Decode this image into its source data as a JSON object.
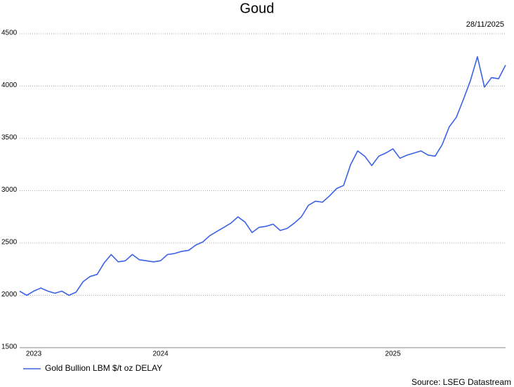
{
  "chart_data": {
    "type": "line",
    "title": "Goud",
    "date": "28/11/2025",
    "source": "Source: LSEG Datastream",
    "categories": [
      null,
      null,
      "2023",
      null,
      null,
      null,
      null,
      null,
      null,
      null,
      null,
      null,
      null,
      null,
      null,
      null,
      null,
      null,
      null,
      null,
      "2024",
      null,
      null,
      null,
      null,
      null,
      null,
      null,
      null,
      null,
      null,
      null,
      null,
      null,
      null,
      null,
      null,
      null,
      null,
      null,
      null,
      null,
      null,
      null,
      null,
      null,
      null,
      null,
      null,
      null,
      null,
      null,
      null,
      "2025",
      null,
      null,
      null,
      null,
      null,
      null,
      null,
      null,
      null,
      null,
      null,
      null,
      null,
      null,
      null,
      null
    ],
    "series": [
      {
        "name": "Gold Bullion LBM $/t oz DELAY",
        "color": "#3b62e6",
        "values": [
          2040,
          2000,
          2040,
          2070,
          2040,
          2020,
          2040,
          2000,
          2030,
          2130,
          2180,
          2200,
          2310,
          2390,
          2320,
          2330,
          2390,
          2340,
          2330,
          2320,
          2330,
          2390,
          2400,
          2420,
          2430,
          2480,
          2510,
          2570,
          2610,
          2650,
          2690,
          2750,
          2700,
          2600,
          2650,
          2660,
          2680,
          2620,
          2640,
          2690,
          2750,
          2860,
          2900,
          2890,
          2950,
          3020,
          3050,
          3250,
          3380,
          3330,
          3240,
          3330,
          3360,
          3400,
          3310,
          3340,
          3360,
          3380,
          3340,
          3330,
          3440,
          3610,
          3700,
          3870,
          4050,
          4280,
          3990,
          4080,
          4070,
          4200
        ]
      }
    ],
    "ylim": [
      1500,
      4500
    ],
    "yticks": [
      1500,
      2000,
      2500,
      3000,
      3500,
      4000,
      4500
    ],
    "grid": true,
    "legend": "bottom-left"
  }
}
